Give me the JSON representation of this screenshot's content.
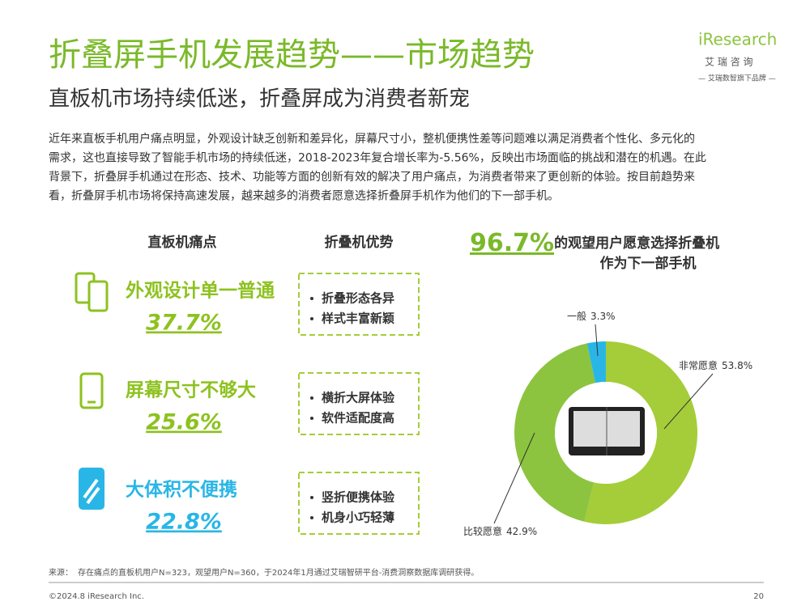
{
  "header": {
    "title": "折叠屏手机发展趋势——市场趋势",
    "subtitle": "直板机市场持续低迷，折叠屏成为消费者新宠"
  },
  "logo": {
    "brand": "iResearch",
    "name": "艾 瑞 咨 询",
    "tagline": "— 艾瑞数智旗下品牌 —"
  },
  "intro": {
    "lines": [
      "近年来直板手机用户痛点明显，外观设计缺乏创新和差异化，屏幕尺寸小，整机便携性差等问题难以满足消费者个性化、多元化的",
      "需求，这也直接导致了智能手机市场的持续低迷，2018-2023年复合增长率为-5.56%，反映出市场面临的挑战和潜在的机遇。在此",
      "背景下，折叠屏手机通过在形态、技术、功能等方面的创新有效的解决了用户痛点，为消费者带来了更创新的体验。按目前趋势来",
      "看，折叠屏手机市场将保持高速发展，越来越多的消费者愿意选择折叠屏手机作为他们的下一部手机。"
    ]
  },
  "comparison": {
    "left_header": "直板机痛点",
    "right_header": "折叠机优势",
    "rows": [
      {
        "title": "外观设计单一普通",
        "percent": "37.7%",
        "advantages": [
          "折叠形态各异",
          "样式丰富新颖"
        ]
      },
      {
        "title": "屏幕尺寸不够大",
        "percent": "25.6%",
        "advantages": [
          "横折大屏体验",
          "软件适配度高"
        ]
      },
      {
        "title": "大体积不便携",
        "percent": "22.8%",
        "advantages": [
          "竖折便携体验",
          "机身小巧轻薄"
        ]
      }
    ]
  },
  "headline": {
    "highlight": "96.7%",
    "line1": "的观望用户愿意选择折叠机",
    "line2": "作为下一部手机"
  },
  "chart_data": {
    "type": "donut",
    "categories": [
      "非常愿意",
      "比较愿意",
      "一般"
    ],
    "values": [
      53.8,
      42.9,
      3.3
    ],
    "value_labels": [
      "53.8%",
      "42.9%",
      "3.3%"
    ],
    "colors": [
      "#a5cd39",
      "#8cc43f",
      "#29b6e6"
    ]
  },
  "footer": {
    "source_label": "来源：",
    "source": "存在痛点的直板机用户N=323，观望用户N=360，于2024年1月通过艾瑞智研平台-消费洞察数据库调研获得。",
    "copyright": "©2024.8 iResearch Inc.",
    "page": "20"
  }
}
